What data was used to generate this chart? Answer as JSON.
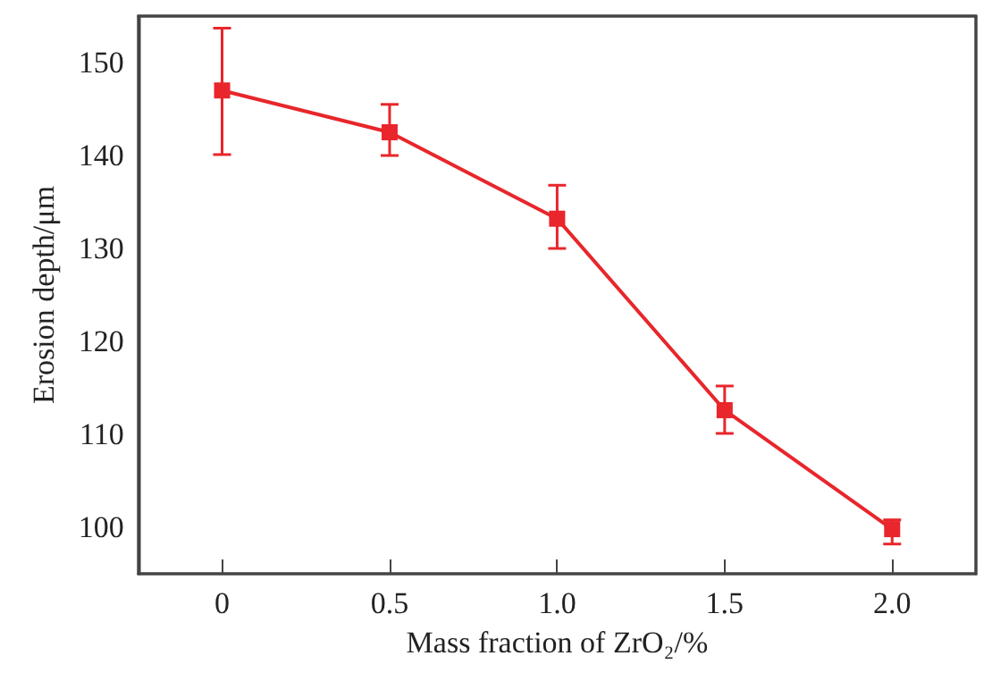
{
  "chart_data": {
    "type": "line",
    "xlabel": "Mass fraction of ZrO₂/%",
    "ylabel": "Erosion depth/μm",
    "x": [
      0,
      0.5,
      1.0,
      1.5,
      2.0
    ],
    "series": [
      {
        "color": "#e8262b",
        "values": [
          147,
          142.5,
          133.2,
          112.6,
          99.8
        ],
        "errors": [
          [
            140.1,
            153.7
          ],
          [
            140,
            145.5
          ],
          [
            130,
            136.8
          ],
          [
            110.1,
            115.2
          ],
          [
            98.2,
            100.8
          ]
        ]
      }
    ],
    "xlim": [
      -0.25,
      2.25
    ],
    "xticks": [
      0,
      {
        "value": 0.5,
        "label": "0.5"
      },
      {
        "value": 1,
        "label": "1.0"
      },
      {
        "value": 1.5,
        "label": "1.5"
      },
      {
        "value": 2,
        "label": "2.0"
      }
    ],
    "ylim": [
      95,
      155
    ],
    "yticks": [
      100,
      110,
      120,
      130,
      140,
      150
    ],
    "grid": false,
    "marker": "square",
    "line_style": "solid"
  }
}
